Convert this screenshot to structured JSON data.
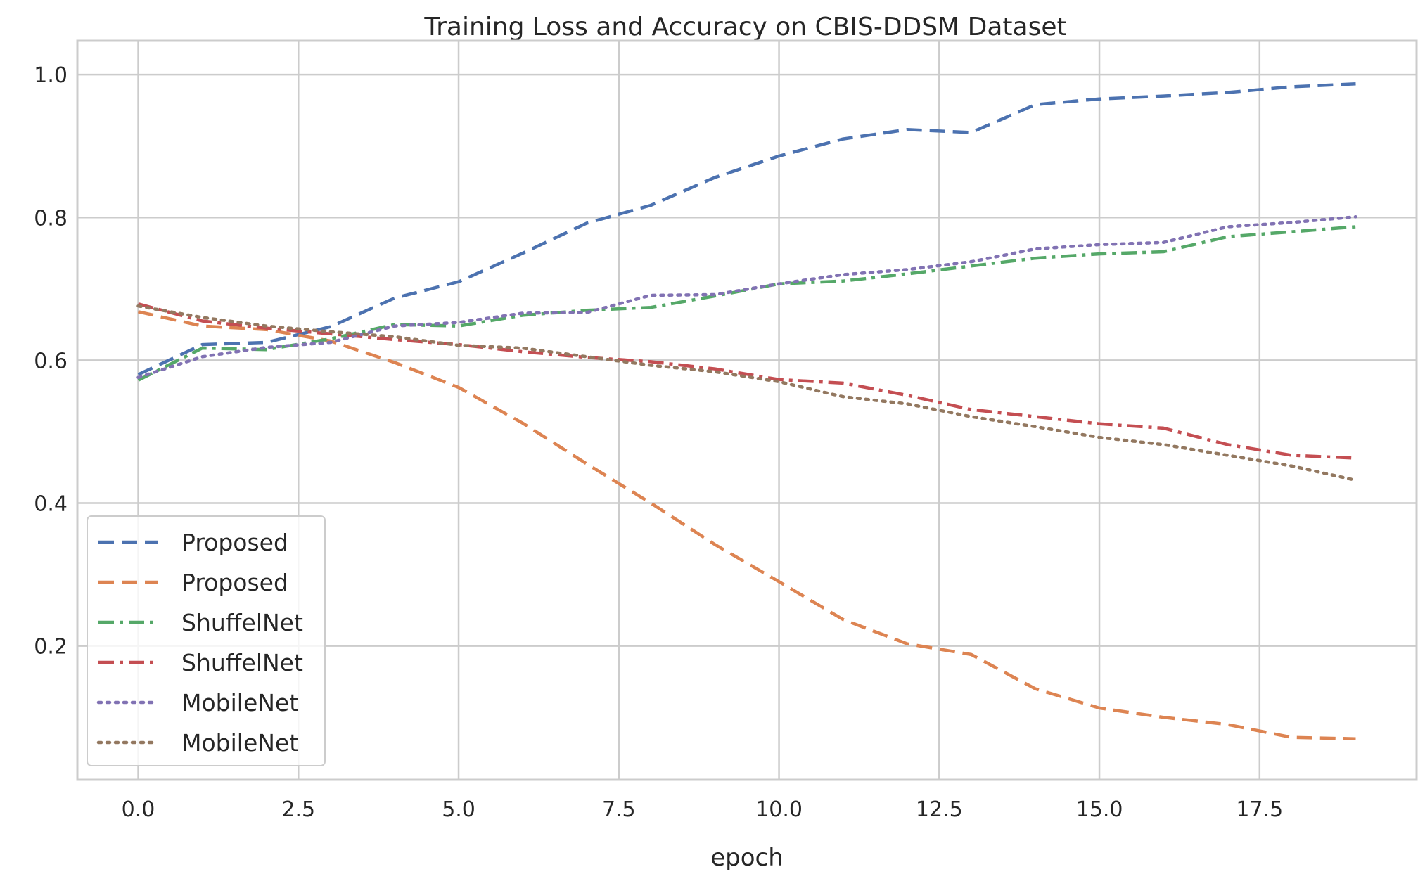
{
  "chart_data": {
    "type": "line",
    "title": "Training Loss and Accuracy on CBIS-DDSM Dataset",
    "xlabel": "epoch",
    "ylabel": "",
    "xlim": [
      -0.95,
      19.95
    ],
    "ylim": [
      0.0126,
      1.0474
    ],
    "xticks": [
      "0.0",
      "2.5",
      "5.0",
      "7.5",
      "10.0",
      "12.5",
      "15.0",
      "17.5"
    ],
    "yticks": [
      "0.2",
      "0.4",
      "0.6",
      "0.8",
      "1.0"
    ],
    "grid": true,
    "legend_position": "lower-left",
    "x": [
      0,
      1,
      2,
      3,
      4,
      5,
      6,
      7,
      8,
      9,
      10,
      11,
      12,
      13,
      14,
      15,
      16,
      17,
      18,
      19
    ],
    "series": [
      {
        "name": "Proposed",
        "color": "#4c72b0",
        "dash": "dashed",
        "values": [
          0.58,
          0.622,
          0.625,
          0.647,
          0.687,
          0.71,
          0.75,
          0.792,
          0.817,
          0.856,
          0.886,
          0.91,
          0.923,
          0.919,
          0.958,
          0.966,
          0.97,
          0.975,
          0.983,
          0.987
        ]
      },
      {
        "name": "Proposed",
        "color": "#dd8452",
        "dash": "dashed",
        "values": [
          0.668,
          0.648,
          0.643,
          0.627,
          0.597,
          0.562,
          0.512,
          0.455,
          0.4,
          0.342,
          0.29,
          0.237,
          0.203,
          0.188,
          0.14,
          0.113,
          0.1,
          0.09,
          0.072,
          0.07
        ]
      },
      {
        "name": "ShuffelNet",
        "color": "#55a868",
        "dash": "dashdot",
        "values": [
          0.572,
          0.617,
          0.615,
          0.63,
          0.65,
          0.648,
          0.663,
          0.67,
          0.674,
          0.69,
          0.707,
          0.711,
          0.721,
          0.732,
          0.743,
          0.749,
          0.752,
          0.773,
          0.78,
          0.787
        ]
      },
      {
        "name": "ShuffelNet",
        "color": "#c44e52",
        "dash": "dashdot",
        "values": [
          0.679,
          0.655,
          0.645,
          0.637,
          0.629,
          0.622,
          0.612,
          0.604,
          0.598,
          0.588,
          0.573,
          0.568,
          0.551,
          0.531,
          0.521,
          0.511,
          0.505,
          0.482,
          0.467,
          0.463
        ]
      },
      {
        "name": "MobileNet",
        "color": "#8172b3",
        "dash": "dotted",
        "values": [
          0.576,
          0.605,
          0.618,
          0.625,
          0.648,
          0.653,
          0.666,
          0.667,
          0.691,
          0.692,
          0.707,
          0.72,
          0.727,
          0.738,
          0.756,
          0.762,
          0.765,
          0.787,
          0.793,
          0.801
        ]
      },
      {
        "name": "MobileNet",
        "color": "#937860",
        "dash": "dotted",
        "values": [
          0.676,
          0.66,
          0.648,
          0.64,
          0.633,
          0.621,
          0.617,
          0.605,
          0.593,
          0.584,
          0.57,
          0.549,
          0.539,
          0.521,
          0.507,
          0.492,
          0.482,
          0.467,
          0.452,
          0.432
        ]
      }
    ]
  }
}
